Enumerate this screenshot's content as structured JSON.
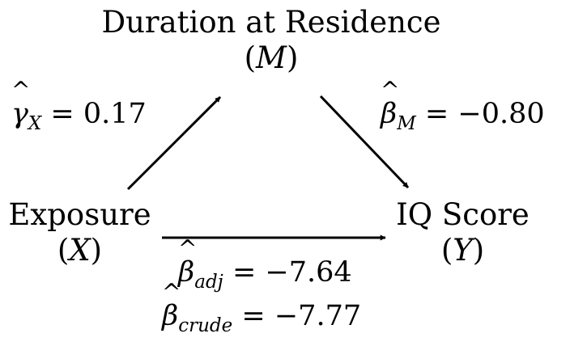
{
  "nodes": {
    "mediator": {
      "label": "Duration at Residence",
      "symbol": "M"
    },
    "exposure": {
      "label": "Exposure",
      "symbol": "X"
    },
    "outcome": {
      "label": "IQ Score",
      "symbol": "Y"
    }
  },
  "paths": {
    "gamma_x": {
      "symbol": "γ",
      "subscript": "X",
      "value": "0.17"
    },
    "beta_m": {
      "symbol": "β",
      "subscript": "M",
      "value": "−0.80"
    },
    "beta_adj": {
      "symbol": "β",
      "subscript": "adj",
      "value": "−7.64"
    },
    "beta_crude": {
      "symbol": "β",
      "subscript": "crude",
      "value": "−7.77"
    }
  }
}
